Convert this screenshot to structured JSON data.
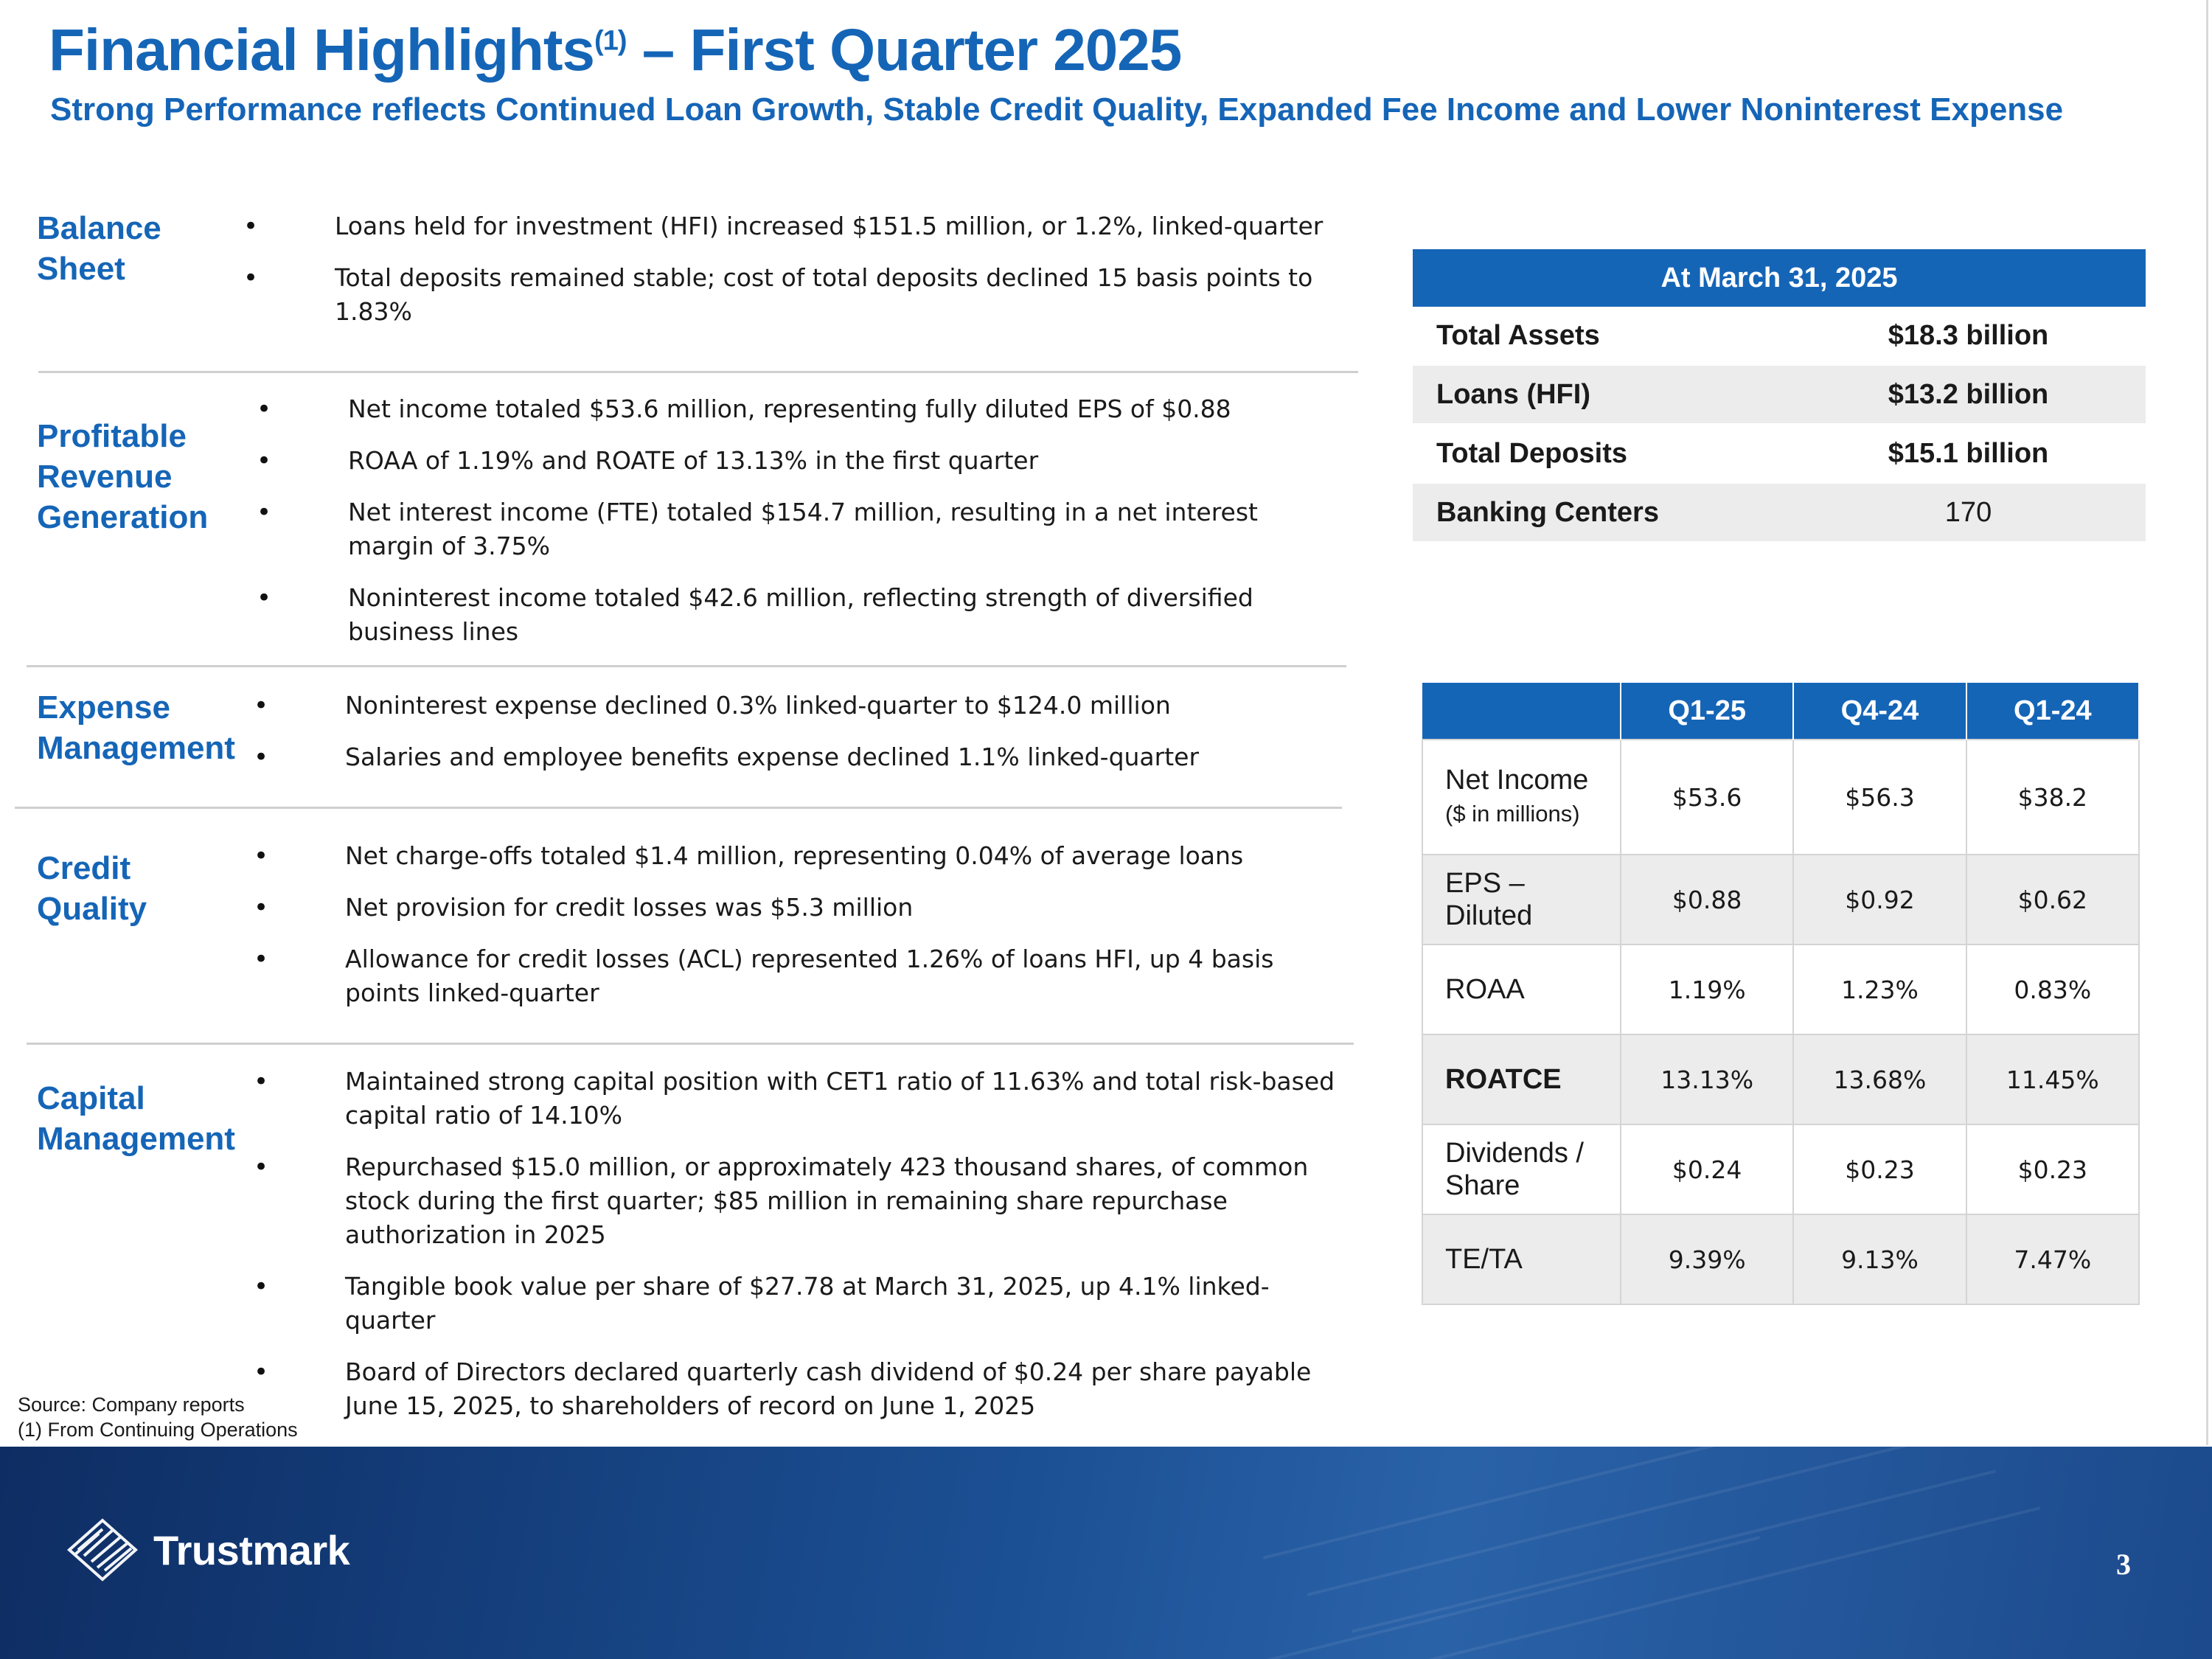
{
  "header": {
    "title_main": "Financial Highlights",
    "title_sup": "(1)",
    "title_rest": " – First Quarter 2025",
    "subtitle": "Strong Performance reflects Continued Loan Growth, Stable Credit Quality, Expanded Fee Income and Lower Noninterest Expense"
  },
  "sections": {
    "balance": {
      "label": "Balance Sheet",
      "bullets": [
        "Loans held for investment (HFI) increased $151.5 million, or 1.2%, linked-quarter",
        "Total deposits remained stable; cost of total deposits declined 15 basis points to 1.83%"
      ]
    },
    "profitable": {
      "label": "Profitable Revenue Generation",
      "bullets": [
        "Net income totaled $53.6 million, representing fully diluted EPS of $0.88",
        "ROAA of 1.19% and ROATE of 13.13% in the first quarter",
        "Net interest income (FTE) totaled $154.7 million, resulting in a net interest margin of 3.75%",
        "Noninterest income totaled $42.6 million, reflecting strength of diversified business lines"
      ]
    },
    "expense": {
      "label": "Expense Management",
      "bullets": [
        "Noninterest expense declined 0.3% linked-quarter to $124.0 million",
        "Salaries and employee benefits expense declined 1.1% linked-quarter"
      ]
    },
    "credit": {
      "label": "Credit Quality",
      "bullets": [
        "Net charge-offs totaled $1.4 million, representing 0.04% of average loans",
        "Net provision for credit losses was $5.3 million",
        "Allowance for credit losses (ACL) represented 1.26% of loans HFI, up 4 basis points linked-quarter"
      ]
    },
    "capital": {
      "label": "Capital Management",
      "bullets": [
        "Maintained strong capital position with CET1 ratio of 11.63% and total risk-based capital ratio of 14.10%",
        "Repurchased $15.0 million, or approximately 423 thousand shares, of common stock during the first quarter; $85 million in remaining share repurchase authorization in 2025",
        "Tangible book value per share of $27.78 at March 31, 2025, up 4.1% linked-quarter",
        "Board of Directors declared quarterly cash dividend of $0.24 per share payable June 15, 2025, to shareholders of record on June 1, 2025"
      ]
    }
  },
  "summary_table": {
    "header": "At March 31, 2025",
    "rows": [
      {
        "label": "Total Assets",
        "value": "$18.3 billion"
      },
      {
        "label": "Loans (HFI)",
        "value": "$13.2 billion"
      },
      {
        "label": "Total Deposits",
        "value": "$15.1 billion"
      },
      {
        "label": "Banking Centers",
        "value": "170"
      }
    ]
  },
  "metrics_table": {
    "columns": [
      "Q1-25",
      "Q4-24",
      "Q1-24"
    ],
    "rows": [
      {
        "label": "Net Income",
        "sublabel": "($ in millions)",
        "values": [
          "$53.6",
          "$56.3",
          "$38.2"
        ]
      },
      {
        "label": "EPS – Diluted",
        "values": [
          "$0.88",
          "$0.92",
          "$0.62"
        ]
      },
      {
        "label": "ROAA",
        "values": [
          "1.19%",
          "1.23%",
          "0.83%"
        ]
      },
      {
        "label": "ROATCE",
        "values": [
          "13.13%",
          "13.68%",
          "11.45%"
        ]
      },
      {
        "label": "Dividends / Share",
        "values": [
          "$0.24",
          "$0.23",
          "$0.23"
        ]
      },
      {
        "label": "TE/TA",
        "values": [
          "9.39%",
          "9.13%",
          "7.47%"
        ]
      }
    ]
  },
  "footnotes": {
    "source": "Source: Company reports",
    "note1": "(1) From Continuing Operations"
  },
  "footer": {
    "brand": "Trustmark",
    "page_number": "3"
  }
}
